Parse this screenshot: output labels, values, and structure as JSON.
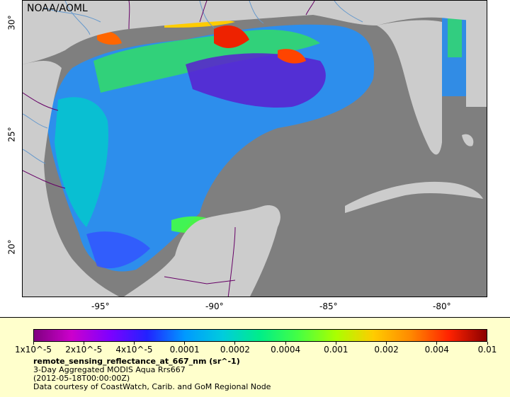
{
  "map": {
    "credit": "NOAA/AOML",
    "lon_labels": [
      "-95°",
      "-90°",
      "-85°",
      "-80°"
    ],
    "lat_labels": [
      "30°",
      "25°",
      "20°"
    ],
    "colors": {
      "land": "#cccccc",
      "ocean_nodata": "#7f7f7f",
      "border": "#660066",
      "river": "#6699cc"
    }
  },
  "legend": {
    "colorbar_colors": [
      "#800080",
      "#cc00cc",
      "#7f00ff",
      "#2222ff",
      "#0099ff",
      "#00ccdd",
      "#00ee88",
      "#44ff44",
      "#aaff00",
      "#ffcc00",
      "#ff8800",
      "#ff2200",
      "#8b0000"
    ],
    "ticks": [
      "1x10^-5",
      "2x10^-5",
      "4x10^-5",
      "0.0001",
      "0.0002",
      "0.0004",
      "0.001",
      "0.002",
      "0.004",
      "0.01"
    ],
    "variable": "remote_sensing_reflectance_at_667_nm (sr^-1)",
    "product": "3-Day Aggregated MODIS Aqua Rrs667",
    "date": "(2012-05-18T00:00:00Z)",
    "courtesy": "Data courtesy of CoastWatch, Carib. and GoM Regional Node"
  }
}
